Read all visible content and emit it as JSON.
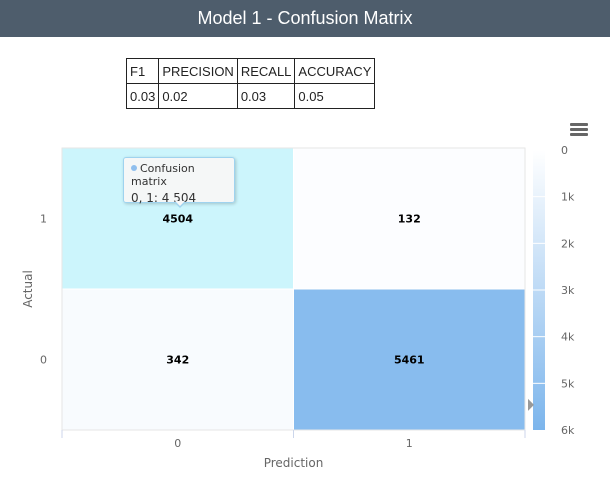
{
  "header": {
    "title": "Model 1 - Confusion Matrix"
  },
  "metrics": {
    "headers": [
      "F1",
      "PRECISION",
      "RECALL",
      "ACCURACY"
    ],
    "values": [
      "0.03",
      "0.02",
      "0.03",
      "0.05"
    ]
  },
  "tooltip": {
    "series": "Confusion matrix",
    "text": "0, 1: 4 504"
  },
  "colors": {
    "min": "#ffffff",
    "max": "#7cb5ec",
    "highlight": "#ccf5fc"
  },
  "chart_data": {
    "type": "heatmap",
    "title": "",
    "xlabel": "Prediction",
    "ylabel": "Actual",
    "x_categories": [
      "0",
      "1"
    ],
    "y_categories": [
      "0",
      "1"
    ],
    "cells": [
      {
        "x": "0",
        "y": "1",
        "value": 4504,
        "label": "4504"
      },
      {
        "x": "1",
        "y": "1",
        "value": 132,
        "label": "132"
      },
      {
        "x": "0",
        "y": "0",
        "value": 342,
        "label": "342"
      },
      {
        "x": "1",
        "y": "0",
        "value": 5461,
        "label": "5461"
      }
    ],
    "color_axis": {
      "min": 0,
      "max": 6000,
      "ticks": [
        "0",
        "1k",
        "2k",
        "3k",
        "4k",
        "5k",
        "6k"
      ],
      "marker_value": 5461
    },
    "legend_position": "right"
  }
}
